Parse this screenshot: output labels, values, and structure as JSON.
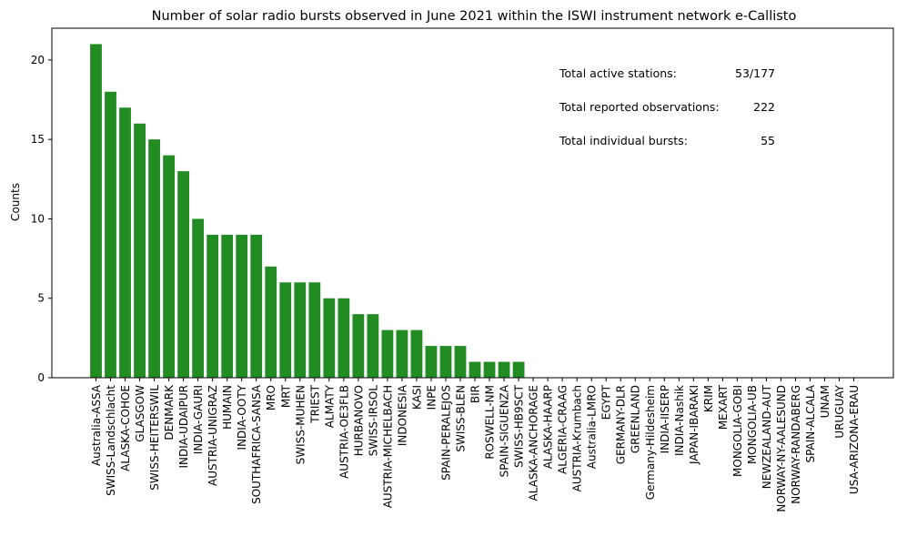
{
  "chart_data": {
    "type": "bar",
    "title": "Number of solar radio bursts observed in June 2021 within the ISWI instrument network e-Callisto",
    "xlabel": "",
    "ylabel": "Counts",
    "ylim": [
      0,
      22
    ],
    "yticks": [
      0,
      5,
      10,
      15,
      20
    ],
    "bar_color": "#228b22",
    "grid": false,
    "categories": [
      "Australia-ASSA",
      "SWISS-Landschlacht",
      "ALASKA-COHOE",
      "GLASGOW",
      "SWISS-HEITERSWIL",
      "DENMARK",
      "INDIA-UDAIPUR",
      "INDIA-GAURI",
      "AUSTRIA-UNIGRAZ",
      "HUMAIN",
      "INDIA-OOTY",
      "SOUTHAFRICA-SANSA",
      "MRO",
      "MRT",
      "SWISS-MUHEN",
      "TRIEST",
      "ALMATY",
      "AUSTRIA-OE3FLB",
      "HURBANOVO",
      "SWISS-IRSOL",
      "AUSTRIA-MICHELBACH",
      "INDONESIA",
      "KASI",
      "INPE",
      "SPAIN-PERALEJOS",
      "SWISS-BLEN",
      "BIR",
      "ROSWELL-NM",
      "SPAIN-SIGUENZA",
      "SWISS-HB9SCT",
      "ALASKA-ANCHORAGE",
      "ALASKA-HAARP",
      "ALGERIA-CRAAG",
      "AUSTRIA-Krumbach",
      "Australia-LMRO",
      "EGYPT",
      "GERMANY-DLR",
      "GREENLAND",
      "Germany-Hildesheim",
      "INDIA-IISERP",
      "INDIA-Nashik",
      "JAPAN-IBARAKI",
      "KRIM",
      "MEXART",
      "MONGOLIA-GOBI",
      "MONGOLIA-UB",
      "NEWZEALAND-AUT",
      "NORWAY-NY-AALESUND",
      "NORWAY-RANDABERG",
      "SPAIN-ALCALA",
      "UNAM",
      "URUGUAY",
      "USA-ARIZONA-ERAU"
    ],
    "values": [
      21,
      18,
      17,
      16,
      15,
      14,
      13,
      10,
      9,
      9,
      9,
      9,
      7,
      6,
      6,
      6,
      5,
      5,
      4,
      4,
      3,
      3,
      3,
      2,
      2,
      2,
      1,
      1,
      1,
      1,
      0,
      0,
      0,
      0,
      0,
      0,
      0,
      0,
      0,
      0,
      0,
      0,
      0,
      0,
      0,
      0,
      0,
      0,
      0,
      0,
      0,
      0,
      0
    ],
    "annotations": [
      {
        "label": "Total active stations:",
        "value": "53/177"
      },
      {
        "label": "Total reported observations:",
        "value": "222"
      },
      {
        "label": "Total individual bursts:",
        "value": "55"
      }
    ]
  }
}
